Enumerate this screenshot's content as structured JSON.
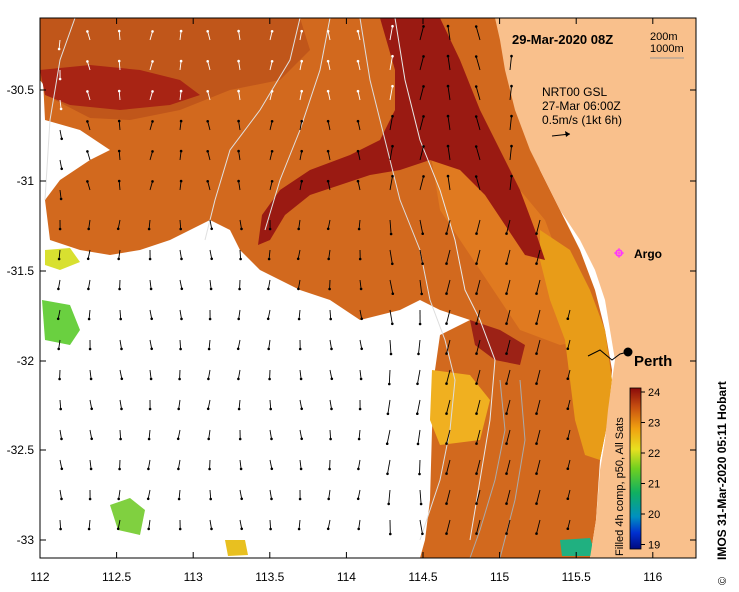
{
  "map": {
    "date_label": "29-Mar-2020 08Z",
    "isobath_labels": [
      "200m",
      "1000m"
    ],
    "current_source": "NRT00 GSL",
    "current_time": "27-Mar 06:00Z",
    "current_scale": "0.5m/s (1kt 6h)",
    "argo_label": "Argo",
    "city_label": "Perth",
    "credit": "IMOS 31-Mar-2020 05:11 Hobart",
    "copyright_symbol": "©",
    "colorbar_title": "Filled 4h comp, p50, All Sats",
    "colorbar_ticks": [
      "24",
      "23",
      "22",
      "21",
      "20",
      "19"
    ],
    "lon_ticks": [
      "112",
      "112.5",
      "113",
      "113.5",
      "114",
      "114.5",
      "115",
      "115.5",
      "116"
    ],
    "lat_ticks": [
      "-30.5",
      "-31",
      "-31.5",
      "-32",
      "-32.5",
      "-33"
    ],
    "land_color": "#f9c08c",
    "argo_color": "#ff33ff"
  }
}
